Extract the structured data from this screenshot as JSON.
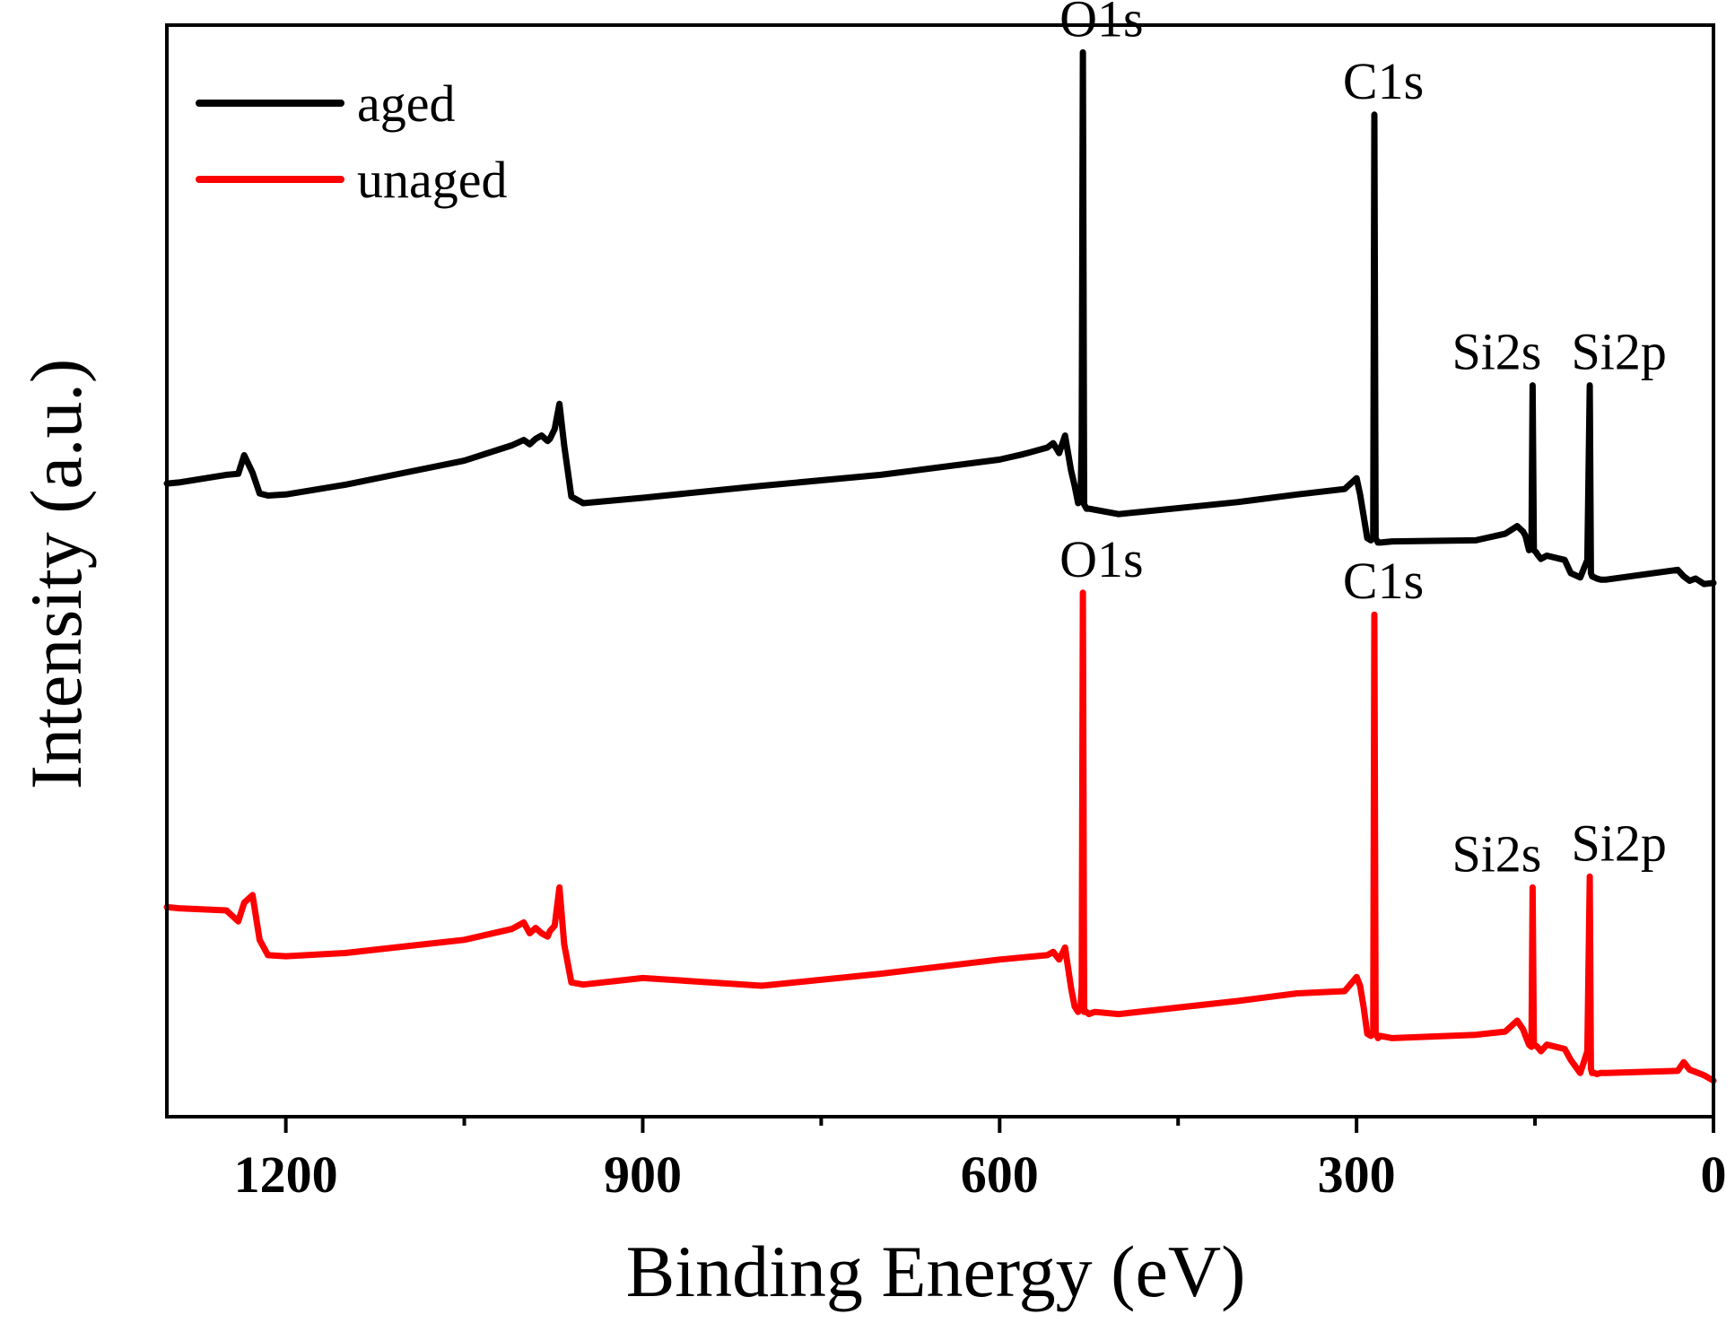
{
  "chart_data": {
    "type": "line",
    "xlabel": "Binding Energy (eV)",
    "ylabel": "Intensity (a.u.)",
    "xlim": [
      1300,
      0
    ],
    "x_reversed": true,
    "yticks_shown": false,
    "xticks": [
      1200,
      900,
      600,
      300,
      0
    ],
    "xticks_minor": [
      1050,
      750,
      450,
      150
    ],
    "xtick_labels": [
      "1200",
      "900",
      "600",
      "300",
      "0"
    ],
    "ylim": [
      0,
      100
    ],
    "grid": false,
    "legend_position": "top-left",
    "series": [
      {
        "name": "aged",
        "color": "#000000",
        "x": [
          1300,
          1290,
          1250,
          1240,
          1235,
          1228,
          1222,
          1215,
          1200,
          1150,
          1100,
          1050,
          1010,
          1000,
          995,
          990,
          985,
          980,
          978,
          974,
          970,
          966,
          960,
          950,
          900,
          800,
          700,
          600,
          580,
          560,
          555,
          550,
          545,
          540,
          537,
          534,
          532,
          531,
          530,
          529,
          527,
          525,
          520,
          500,
          400,
          350,
          310,
          300,
          297,
          294,
          291,
          288,
          286,
          285,
          284,
          282,
          280,
          270,
          200,
          175,
          165,
          160,
          158,
          155,
          153,
          152,
          151,
          149,
          148,
          145,
          140,
          125,
          120,
          112,
          106,
          104,
          103,
          102,
          100,
          98,
          95,
          90,
          30,
          25,
          20,
          15,
          8,
          0
        ],
        "y": [
          58.0,
          58.1,
          58.8,
          58.9,
          60.6,
          59.0,
          57.1,
          56.9,
          57.0,
          57.9,
          59.0,
          60.1,
          61.5,
          62.0,
          61.6,
          62.1,
          62.4,
          61.9,
          62.1,
          63.0,
          65.3,
          61.5,
          56.8,
          56.2,
          56.7,
          57.8,
          58.8,
          60.2,
          60.7,
          61.3,
          61.7,
          60.8,
          62.4,
          59.2,
          57.8,
          56.2,
          56.4,
          62.0,
          97.5,
          56.1,
          55.7,
          55.7,
          55.6,
          55.2,
          56.3,
          57.0,
          57.5,
          58.5,
          57.0,
          55.0,
          53.0,
          52.8,
          53.2,
          91.8,
          53.0,
          52.6,
          52.6,
          52.7,
          52.8,
          53.4,
          54.1,
          53.6,
          53.2,
          51.9,
          52.1,
          67.0,
          51.9,
          51.7,
          51.5,
          51.1,
          51.4,
          51.0,
          49.8,
          49.4,
          51.0,
          67.0,
          49.8,
          49.5,
          49.4,
          49.3,
          49.2,
          49.2,
          50.1,
          49.5,
          49.1,
          49.3,
          48.8,
          48.9
        ]
      },
      {
        "name": "unaged",
        "color": "#ff0000",
        "x": [
          1300,
          1290,
          1250,
          1240,
          1235,
          1228,
          1222,
          1215,
          1200,
          1150,
          1100,
          1050,
          1010,
          1000,
          995,
          990,
          985,
          980,
          978,
          974,
          970,
          966,
          960,
          950,
          900,
          800,
          700,
          600,
          580,
          560,
          555,
          550,
          545,
          540,
          537,
          534,
          532,
          531,
          530,
          529,
          527,
          525,
          520,
          500,
          400,
          350,
          310,
          300,
          297,
          294,
          291,
          288,
          286,
          285,
          284,
          282,
          280,
          270,
          200,
          175,
          165,
          160,
          158,
          155,
          153,
          152,
          151,
          149,
          148,
          145,
          140,
          125,
          120,
          112,
          106,
          104,
          103,
          102,
          100,
          98,
          95,
          90,
          30,
          25,
          20,
          15,
          8,
          0
        ],
        "y": [
          19.2,
          19.1,
          18.9,
          17.9,
          19.6,
          20.3,
          16.2,
          14.8,
          14.7,
          15.0,
          15.6,
          16.2,
          17.2,
          17.8,
          16.8,
          17.3,
          16.8,
          16.5,
          17.0,
          17.5,
          21.0,
          15.8,
          12.3,
          12.1,
          12.7,
          12.0,
          13.1,
          14.4,
          14.6,
          14.8,
          15.1,
          14.4,
          15.5,
          11.8,
          10.1,
          9.6,
          10.0,
          12.0,
          48.0,
          9.6,
          9.6,
          9.4,
          9.6,
          9.4,
          10.6,
          11.3,
          11.5,
          12.8,
          12.0,
          10.0,
          7.6,
          7.4,
          7.6,
          46.0,
          7.7,
          7.2,
          7.4,
          7.2,
          7.5,
          7.8,
          8.8,
          8.0,
          7.4,
          6.6,
          6.4,
          21.0,
          6.5,
          6.5,
          6.4,
          6.0,
          6.6,
          6.2,
          5.2,
          4.0,
          6.0,
          22.0,
          4.4,
          4.0,
          4.0,
          3.9,
          4.0,
          4.0,
          4.2,
          5.0,
          4.3,
          4.1,
          3.8,
          3.3
        ]
      }
    ],
    "annotations": [
      {
        "series": "aged",
        "text": "O1s",
        "x": 531,
        "y": 97.5
      },
      {
        "series": "aged",
        "text": "C1s",
        "x": 285,
        "y": 91.8
      },
      {
        "series": "aged",
        "text": "Si2s",
        "x": 152,
        "y": 67.0
      },
      {
        "series": "aged",
        "text": "Si2p",
        "x": 102,
        "y": 67.0
      },
      {
        "series": "unaged",
        "text": "O1s",
        "x": 531,
        "y": 48.0
      },
      {
        "series": "unaged",
        "text": "C1s",
        "x": 285,
        "y": 46.0
      },
      {
        "series": "unaged",
        "text": "Si2s",
        "x": 152,
        "y": 21.0
      },
      {
        "series": "unaged",
        "text": "Si2p",
        "x": 102,
        "y": 22.0
      }
    ]
  }
}
